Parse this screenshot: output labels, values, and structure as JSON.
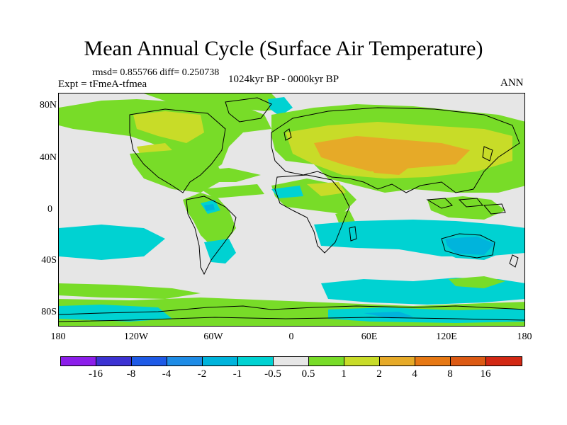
{
  "title": "Mean Annual Cycle (Surface Air Temperature)",
  "stats": "rmsd= 0.855766 diff= 0.250738",
  "experiment": "Expt = tFmeA-tfmea",
  "period": "1024kyr BP - 0000kyr BP",
  "season": "ANN",
  "lat_labels": [
    "80N",
    "40N",
    "0",
    "40S",
    "80S"
  ],
  "lon_labels": [
    "180",
    "120W",
    "60W",
    "0",
    "60E",
    "120E",
    "180"
  ],
  "colorbar": {
    "labels": [
      "-16",
      "-8",
      "-4",
      "-2",
      "-1",
      "-0.5",
      "0.5",
      "1",
      "2",
      "4",
      "8",
      "16"
    ],
    "colors": [
      "#8c1eea",
      "#3c32d2",
      "#1e5ae6",
      "#1e8ce6",
      "#00b4dc",
      "#00d2d2",
      "#e6e6e6",
      "#78dc28",
      "#c8dc28",
      "#e6aa28",
      "#e67814",
      "#dc5a14",
      "#d22814"
    ]
  }
}
